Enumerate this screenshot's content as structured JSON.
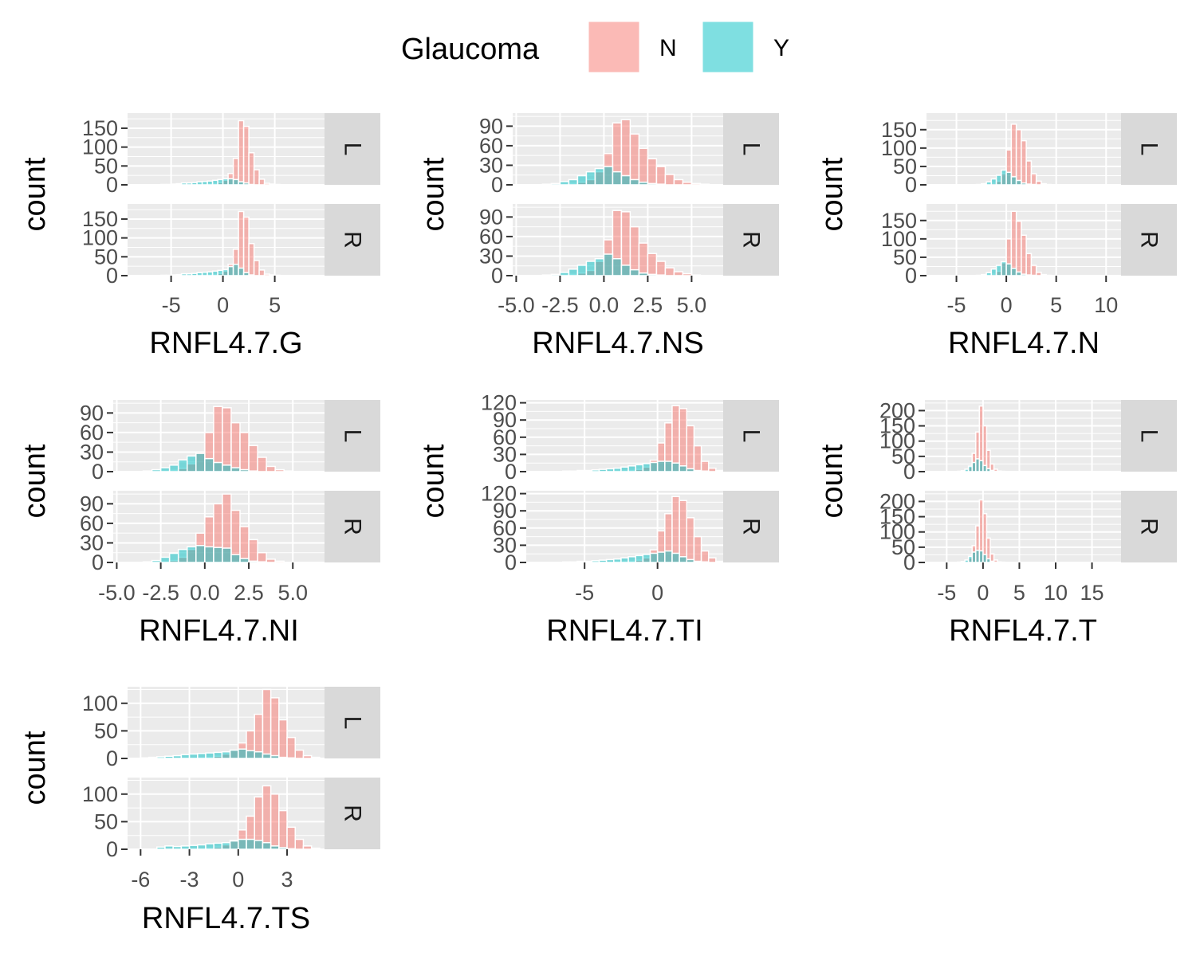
{
  "legend": {
    "title": "Glaucoma",
    "entries": [
      {
        "label": "N",
        "color": "#F8766D"
      },
      {
        "label": "Y",
        "color": "#00BFC4"
      }
    ]
  },
  "colors": {
    "panel_bg": "#EBEBEB",
    "grid": "#FFFFFF",
    "strip_bg": "#D9D9D9",
    "bar_outline": "#FFFFFF",
    "bar_alpha": 0.5
  },
  "chart_data": [
    {
      "type": "bar",
      "variable": "RNFL4.7.G",
      "xlabel": "RNFL4.7.G",
      "ylabel": "count",
      "facets": [
        "L",
        "R"
      ],
      "xlim": [
        -9.2,
        9.8
      ],
      "ylim": [
        0,
        190
      ],
      "xticks": [
        -5,
        0,
        5
      ],
      "xtick_labels": [
        "-5",
        "0",
        "5"
      ],
      "yticks": [
        0,
        50,
        100,
        150
      ],
      "ytick_labels": [
        "0",
        "50",
        "100",
        "150"
      ],
      "bin_start": -7.5,
      "bin_width": 0.5,
      "panels": {
        "L": {
          "N": [
            0,
            0,
            0,
            0,
            0,
            0,
            0,
            0,
            0,
            0,
            1,
            1,
            2,
            3,
            6,
            12,
            30,
            70,
            170,
            155,
            85,
            40,
            15,
            4,
            2,
            1,
            0,
            0,
            0,
            0,
            0,
            0
          ],
          "Y": [
            0,
            0,
            0,
            1,
            1,
            2,
            3,
            5,
            5,
            6,
            8,
            9,
            10,
            12,
            14,
            16,
            16,
            14,
            8,
            5,
            1,
            0,
            0,
            0,
            0,
            0,
            0,
            0,
            0,
            0,
            0,
            0
          ]
        },
        "R": {
          "N": [
            0,
            0,
            0,
            0,
            0,
            0,
            0,
            0,
            0,
            0,
            1,
            1,
            2,
            3,
            6,
            12,
            30,
            70,
            170,
            155,
            85,
            40,
            15,
            4,
            2,
            1,
            0,
            0,
            0,
            0,
            0,
            0
          ],
          "Y": [
            0,
            0,
            0,
            1,
            1,
            2,
            3,
            5,
            5,
            6,
            8,
            9,
            10,
            12,
            14,
            16,
            24,
            30,
            20,
            8,
            2,
            0,
            0,
            0,
            0,
            0,
            0,
            0,
            0,
            0,
            0,
            0
          ]
        }
      }
    },
    {
      "type": "bar",
      "variable": "RNFL4.7.NS",
      "xlabel": "RNFL4.7.NS",
      "ylabel": "count",
      "facets": [
        "L",
        "R"
      ],
      "xlim": [
        -5.2,
        6.8
      ],
      "ylim": [
        0,
        110
      ],
      "xticks": [
        -5.0,
        -2.5,
        0.0,
        2.5,
        5.0
      ],
      "xtick_labels": [
        "-5.0",
        "-2.5",
        "0.0",
        "2.5",
        "5.0"
      ],
      "yticks": [
        0,
        30,
        60,
        90
      ],
      "ytick_labels": [
        "0",
        "30",
        "60",
        "90"
      ],
      "bin_start": -4.5,
      "bin_width": 0.5,
      "panels": {
        "L": {
          "N": [
            0,
            0,
            0,
            0,
            1,
            2,
            4,
            8,
            20,
            48,
            95,
            100,
            78,
            56,
            40,
            28,
            16,
            8,
            4,
            2,
            1,
            0,
            0
          ],
          "Y": [
            0,
            0,
            1,
            2,
            5,
            8,
            14,
            20,
            25,
            28,
            20,
            14,
            8,
            4,
            2,
            1,
            0,
            0,
            0,
            0,
            0,
            0,
            0
          ]
        },
        "R": {
          "N": [
            0,
            0,
            0,
            0,
            1,
            2,
            4,
            8,
            22,
            55,
            100,
            98,
            75,
            50,
            34,
            22,
            12,
            6,
            3,
            1,
            0,
            0,
            0
          ],
          "Y": [
            0,
            0,
            1,
            2,
            5,
            10,
            16,
            22,
            26,
            33,
            26,
            16,
            9,
            4,
            2,
            1,
            0,
            0,
            0,
            0,
            0,
            0,
            0
          ]
        }
      }
    },
    {
      "type": "bar",
      "variable": "RNFL4.7.N",
      "xlabel": "RNFL4.7.N",
      "ylabel": "count",
      "facets": [
        "L",
        "R"
      ],
      "xlim": [
        -8.0,
        11.5
      ],
      "ylim": [
        0,
        195
      ],
      "xticks": [
        -5,
        0,
        5,
        10
      ],
      "xtick_labels": [
        "-5",
        "0",
        "5",
        "10"
      ],
      "yticks": [
        0,
        50,
        100,
        150
      ],
      "ytick_labels": [
        "0",
        "50",
        "100",
        "150"
      ],
      "bin_start": -4.5,
      "bin_width": 0.5,
      "panels": {
        "L": {
          "N": [
            0,
            0,
            0,
            0,
            1,
            2,
            4,
            10,
            30,
            95,
            165,
            150,
            120,
            65,
            30,
            10,
            3,
            1,
            0,
            0,
            0,
            0
          ],
          "Y": [
            0,
            0,
            0,
            1,
            3,
            8,
            16,
            26,
            40,
            34,
            22,
            12,
            5,
            2,
            1,
            0,
            0,
            0,
            0,
            0,
            0,
            0
          ]
        },
        "R": {
          "N": [
            0,
            0,
            0,
            0,
            1,
            2,
            4,
            12,
            35,
            100,
            175,
            148,
            110,
            60,
            28,
            9,
            3,
            1,
            0,
            0,
            0,
            0
          ],
          "Y": [
            0,
            0,
            0,
            1,
            3,
            8,
            18,
            28,
            38,
            32,
            20,
            10,
            4,
            2,
            1,
            0,
            0,
            0,
            0,
            0,
            0,
            0
          ]
        }
      }
    },
    {
      "type": "bar",
      "variable": "RNFL4.7.NI",
      "xlabel": "RNFL4.7.NI",
      "ylabel": "count",
      "facets": [
        "L",
        "R"
      ],
      "xlim": [
        -5.2,
        6.8
      ],
      "ylim": [
        0,
        110
      ],
      "xticks": [
        -5.0,
        -2.5,
        0.0,
        2.5,
        5.0
      ],
      "xtick_labels": [
        "-5.0",
        "-2.5",
        "0.0",
        "2.5",
        "5.0"
      ],
      "yticks": [
        0,
        30,
        60,
        90
      ],
      "ytick_labels": [
        "0",
        "30",
        "60",
        "90"
      ],
      "bin_start": -4.5,
      "bin_width": 0.5,
      "panels": {
        "L": {
          "N": [
            0,
            0,
            0,
            0,
            1,
            2,
            5,
            12,
            30,
            60,
            100,
            98,
            75,
            60,
            40,
            22,
            8,
            3,
            1,
            0,
            0,
            0
          ],
          "Y": [
            0,
            0,
            1,
            3,
            6,
            10,
            18,
            24,
            28,
            20,
            14,
            10,
            6,
            3,
            1,
            0,
            0,
            0,
            0,
            0,
            0,
            0
          ]
        },
        "R": {
          "N": [
            0,
            0,
            0,
            0,
            1,
            3,
            8,
            20,
            45,
            70,
            90,
            105,
            80,
            55,
            35,
            15,
            5,
            2,
            0,
            0,
            0,
            0
          ],
          "Y": [
            0,
            0,
            1,
            3,
            8,
            14,
            20,
            24,
            26,
            24,
            23,
            22,
            12,
            6,
            2,
            1,
            0,
            0,
            0,
            0,
            0,
            0
          ]
        }
      }
    },
    {
      "type": "bar",
      "variable": "RNFL4.7.TI",
      "xlabel": "RNFL4.7.TI",
      "ylabel": "count",
      "facets": [
        "L",
        "R"
      ],
      "xlim": [
        -9.0,
        4.5
      ],
      "ylim": [
        0,
        125
      ],
      "xticks": [
        -5,
        0
      ],
      "xtick_labels": [
        "-5",
        "0"
      ],
      "yticks": [
        0,
        30,
        60,
        90,
        120
      ],
      "ytick_labels": [
        "0",
        "30",
        "60",
        "90",
        "120"
      ],
      "bin_start": -7.0,
      "bin_width": 0.5,
      "panels": {
        "L": {
          "N": [
            0,
            0,
            0,
            0,
            0,
            0,
            0,
            0,
            1,
            1,
            2,
            4,
            8,
            20,
            50,
            85,
            115,
            110,
            80,
            45,
            18,
            6,
            2,
            0
          ],
          "Y": [
            0,
            1,
            1,
            2,
            2,
            3,
            4,
            5,
            6,
            8,
            10,
            12,
            14,
            16,
            18,
            18,
            15,
            10,
            5,
            2,
            1,
            0,
            0,
            0
          ]
        },
        "R": {
          "N": [
            0,
            0,
            0,
            0,
            0,
            0,
            0,
            0,
            1,
            1,
            2,
            4,
            8,
            22,
            55,
            85,
            115,
            108,
            78,
            45,
            20,
            8,
            2,
            0
          ],
          "Y": [
            0,
            1,
            1,
            2,
            2,
            3,
            4,
            5,
            6,
            8,
            10,
            12,
            14,
            16,
            18,
            20,
            16,
            10,
            5,
            2,
            1,
            0,
            0,
            0
          ]
        }
      }
    },
    {
      "type": "bar",
      "variable": "RNFL4.7.T",
      "xlabel": "RNFL4.7.T",
      "ylabel": "count",
      "facets": [
        "L",
        "R"
      ],
      "xlim": [
        -8.0,
        19.0
      ],
      "ylim": [
        0,
        235
      ],
      "xticks": [
        -5,
        0,
        5,
        10,
        15
      ],
      "xtick_labels": [
        "-5",
        "0",
        "5",
        "10",
        "15"
      ],
      "yticks": [
        0,
        50,
        100,
        150,
        200
      ],
      "ytick_labels": [
        "0",
        "50",
        "100",
        "150",
        "200"
      ],
      "bin_start": -4.5,
      "bin_width": 0.5,
      "panels": {
        "L": {
          "N": [
            0,
            0,
            1,
            2,
            5,
            15,
            60,
            130,
            215,
            150,
            70,
            25,
            8,
            2,
            1,
            0,
            0,
            0
          ],
          "Y": [
            0,
            0,
            1,
            3,
            8,
            18,
            30,
            42,
            36,
            20,
            10,
            4,
            1,
            0,
            0,
            0,
            0,
            0
          ]
        },
        "R": {
          "N": [
            0,
            0,
            1,
            2,
            5,
            15,
            55,
            120,
            205,
            160,
            80,
            28,
            8,
            2,
            1,
            0,
            0,
            0
          ],
          "Y": [
            0,
            0,
            1,
            3,
            8,
            20,
            34,
            40,
            38,
            26,
            12,
            4,
            1,
            0,
            0,
            0,
            0,
            0
          ]
        }
      }
    },
    {
      "type": "bar",
      "variable": "RNFL4.7.TS",
      "xlabel": "RNFL4.7.TS",
      "ylabel": "count",
      "facets": [
        "L",
        "R"
      ],
      "xlim": [
        -6.8,
        5.3
      ],
      "ylim": [
        0,
        130
      ],
      "xticks": [
        -6,
        -3,
        0,
        3
      ],
      "xtick_labels": [
        "-6",
        "-3",
        "0",
        "3"
      ],
      "yticks": [
        0,
        50,
        100
      ],
      "ytick_labels": [
        "0",
        "50",
        "100"
      ],
      "bin_start": -6.0,
      "bin_width": 0.5,
      "panels": {
        "L": {
          "N": [
            0,
            0,
            0,
            0,
            0,
            0,
            0,
            1,
            2,
            4,
            8,
            15,
            28,
            50,
            80,
            125,
            110,
            70,
            38,
            15,
            5,
            2,
            0
          ],
          "Y": [
            1,
            2,
            3,
            4,
            5,
            7,
            8,
            9,
            10,
            11,
            12,
            15,
            17,
            14,
            12,
            8,
            5,
            2,
            1,
            0,
            0,
            0,
            0
          ]
        },
        "R": {
          "N": [
            0,
            0,
            0,
            0,
            0,
            0,
            0,
            1,
            2,
            4,
            8,
            16,
            35,
            60,
            95,
            115,
            100,
            70,
            40,
            18,
            6,
            2,
            0
          ],
          "Y": [
            0,
            0,
            4,
            6,
            5,
            6,
            7,
            8,
            10,
            11,
            12,
            15,
            18,
            18,
            16,
            12,
            6,
            3,
            1,
            0,
            0,
            0,
            0
          ]
        }
      }
    }
  ]
}
